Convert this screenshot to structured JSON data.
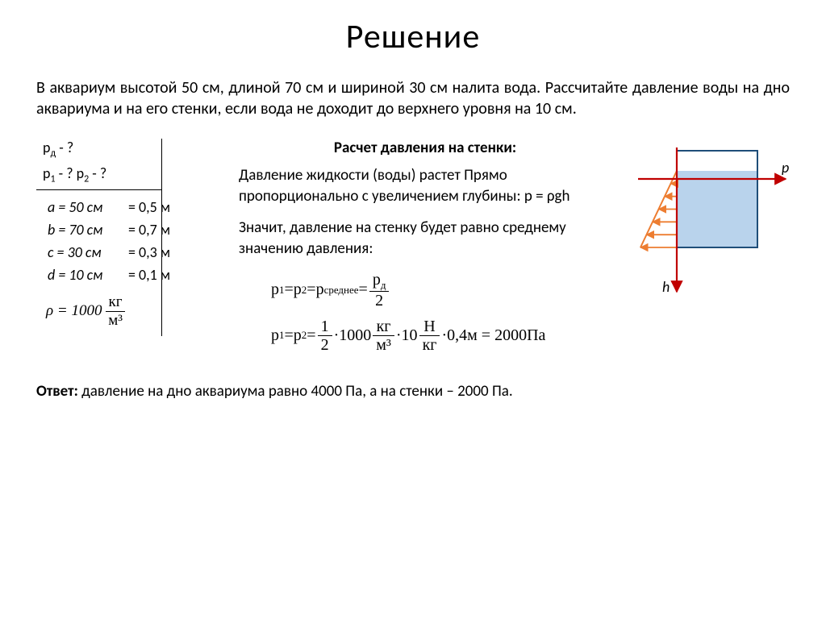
{
  "title": "Решение",
  "problem": "В аквариум высотой 50 см, длиной 70 см и шириной 30 см налита вода. Рассчитайте давление воды на дно аквариума и на его стенки, если вода не доходит до верхнего уровня на 10 см.",
  "given": {
    "find1": "p",
    "find1_sub": "д",
    "find1_suffix": " - ?",
    "find2": "p",
    "find2_sub": "1",
    "find2_mid": " - ?   p",
    "find2_sub2": "2",
    "find2_suffix": " - ?",
    "rows": [
      {
        "L": "a = 50 см",
        "R": "= 0,5 м"
      },
      {
        "L": "b = 70 см",
        "R": "= 0,7 м"
      },
      {
        "L": "с = 30 см",
        "R": "= 0,3 м"
      },
      {
        "L": "d = 10 см",
        "R": "= 0,1 м"
      }
    ],
    "rho_lead": "ρ = 1000",
    "rho_num": "кг",
    "rho_den": "м³"
  },
  "calc": {
    "heading": "Расчет давления на стенки:",
    "para1": "Давление жидкости (воды) растет Прямо пропорционально с увеличением глубины: p = ρgh",
    "para2": "Значит, давление на стенку будет равно среднему значению давления:"
  },
  "formulas": {
    "f1_lhs": "p",
    "sub1": "1",
    "eq": " = ",
    "f1_p2": "p",
    "sub2": "2",
    "f1_avg": "p",
    "sub_avg": "среднее",
    "f1_eq3": " = ",
    "f1_frac_num": "p",
    "f1_frac_num_sub": "д",
    "f1_frac_den": "2",
    "f2_half_n": "1",
    "f2_half_d": "2",
    "f2_1000": "·1000",
    "f2_kg": "кг",
    "f2_m3": "м³",
    "f2_10": "·10",
    "f2_N": "Н",
    "f2_kg2": "кг",
    "f2_04": "·0,4м = 2000Па"
  },
  "diagram": {
    "p_label": "p",
    "h_label": "h",
    "colors": {
      "water": "#b9d3ec",
      "arrows": "#ed7d31",
      "axes": "#c00000",
      "box": "#1f4e79"
    }
  },
  "answer": {
    "label": "Ответ:",
    "text": "  давление на дно аквариума равно 4000 Па, а на стенки – 2000 Па."
  }
}
